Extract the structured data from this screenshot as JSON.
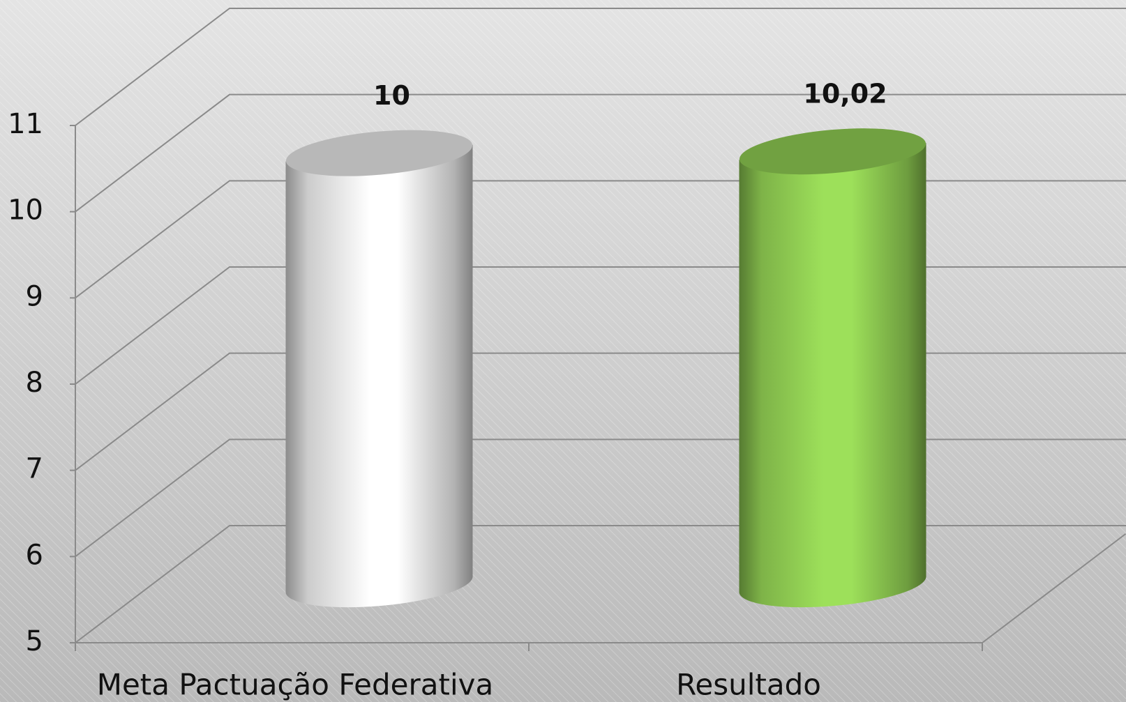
{
  "chart_data": {
    "type": "bar3d-cylinder",
    "categories": [
      "Meta Pactuação Federativa",
      "Resultado"
    ],
    "values": [
      10,
      10.02
    ],
    "value_labels": [
      "10",
      "10,02"
    ],
    "colors": [
      "#ffffff",
      "#9de05a"
    ],
    "ylim": [
      5,
      11
    ],
    "yticks": [
      5,
      6,
      7,
      8,
      9,
      10,
      11
    ],
    "grid": true
  }
}
